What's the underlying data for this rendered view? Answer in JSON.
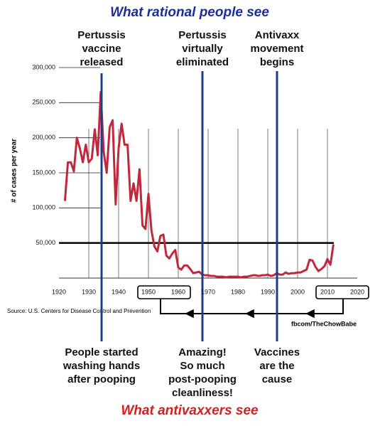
{
  "chart_data": {
    "type": "line",
    "title": "What rational people see",
    "subtitle": "What antivaxxers see",
    "ylabel": "# of cases per year",
    "source": "Source: U.S. Centers for Disease Control and Prevention",
    "credit": "fbcom/TheChowBabe",
    "annotations_top": [
      "Pertussis\nvaccine\nreleased",
      "Pertussis\nvirtually\neliminated",
      "Antivaxx\nmovement\nbegins"
    ],
    "annotations_bottom": [
      "People started\nwashing hands\nafter pooping",
      "Amazing!\nSo much\npost-pooping\ncleanliness!",
      "Vaccines\nare the\ncause"
    ],
    "x": [
      1922,
      1923,
      1924,
      1925,
      1926,
      1927,
      1928,
      1929,
      1930,
      1931,
      1932,
      1933,
      1934,
      1935,
      1936,
      1937,
      1938,
      1939,
      1940,
      1941,
      1942,
      1943,
      1944,
      1945,
      1946,
      1947,
      1948,
      1949,
      1950,
      1951,
      1952,
      1953,
      1954,
      1955,
      1956,
      1957,
      1958,
      1959,
      1960,
      1961,
      1962,
      1963,
      1964,
      1965,
      1966,
      1967,
      1968,
      1969,
      1970,
      1971,
      1972,
      1973,
      1974,
      1975,
      1976,
      1977,
      1978,
      1979,
      1980,
      1981,
      1982,
      1983,
      1984,
      1985,
      1986,
      1987,
      1988,
      1989,
      1990,
      1991,
      1992,
      1993,
      1994,
      1995,
      1996,
      1997,
      1998,
      1999,
      2000,
      2001,
      2002,
      2003,
      2004,
      2005,
      2006,
      2007,
      2008,
      2009,
      2010,
      2011,
      2012
    ],
    "series": [
      {
        "name": "Pertussis cases",
        "color": "#c0283c",
        "values": [
          110000,
          165000,
          165000,
          152000,
          200000,
          185000,
          165000,
          190000,
          165000,
          170000,
          212000,
          175000,
          265000,
          180000,
          150000,
          215000,
          225000,
          105000,
          185000,
          220000,
          190000,
          190000,
          110000,
          135000,
          110000,
          155000,
          75000,
          70000,
          120000,
          68000,
          45000,
          38000,
          60000,
          62000,
          32000,
          28000,
          35000,
          40000,
          15000,
          12000,
          18000,
          18000,
          13000,
          7000,
          8000,
          9000,
          5000,
          4000,
          4000,
          3000,
          3000,
          2000,
          2000,
          2000,
          1000,
          2000,
          2000,
          2000,
          2000,
          1000,
          2000,
          2000,
          3000,
          4000,
          4000,
          3000,
          4000,
          4000,
          5000,
          3000,
          4000,
          7000,
          5000,
          5000,
          8000,
          6000,
          7000,
          7000,
          8000,
          8000,
          10000,
          12000,
          26000,
          25000,
          16000,
          10000,
          13000,
          17000,
          27000,
          19000,
          48000
        ]
      }
    ],
    "xlim": [
      1920,
      2020
    ],
    "xticks": [
      1920,
      1930,
      1940,
      1950,
      1960,
      1970,
      1980,
      1990,
      2000,
      2010,
      2020
    ],
    "ylim": [
      0,
      300000
    ],
    "yticks": [
      {
        "value": 50000,
        "label": "50,000"
      },
      {
        "value": 100000,
        "label": "100,000"
      },
      {
        "value": 150000,
        "label": "150,000"
      },
      {
        "value": 200000,
        "label": "200,000"
      },
      {
        "value": 250000,
        "label": "250,000"
      },
      {
        "value": 300000,
        "label": "300,000"
      }
    ],
    "reference_line": 50000,
    "grid": true
  }
}
